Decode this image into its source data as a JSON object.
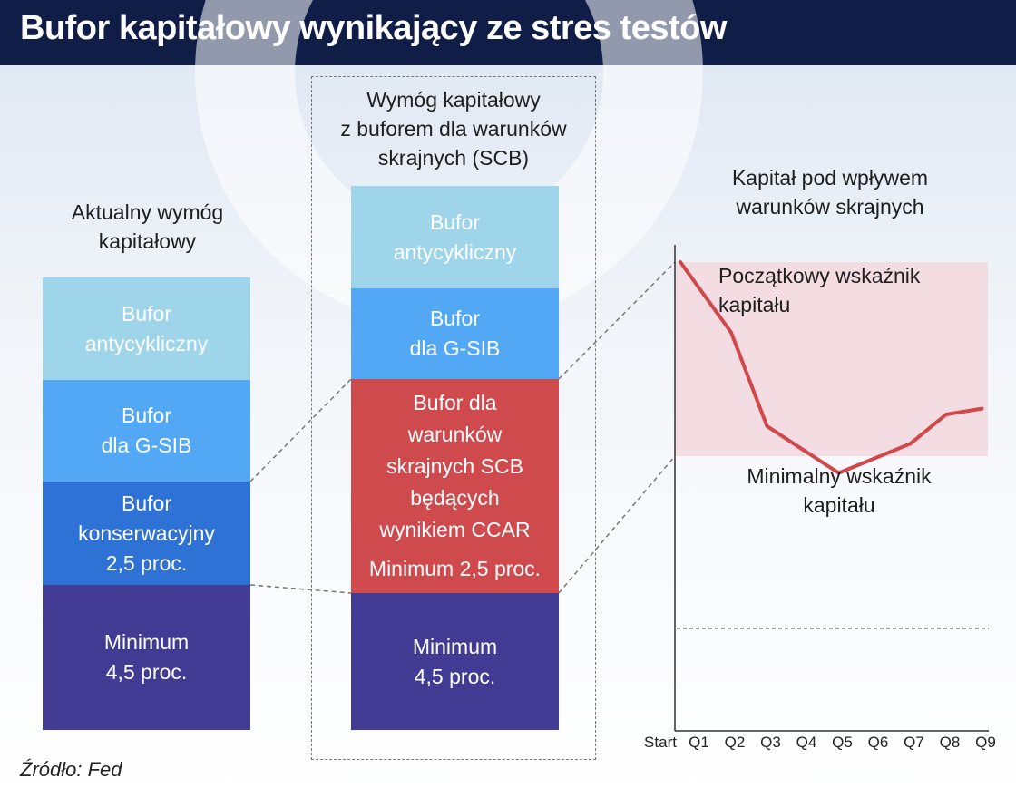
{
  "header": {
    "title": "Bufor kapitałowy wynikający ze stres testów"
  },
  "left_column": {
    "title": [
      "Aktualny wymóg",
      "kapitałowy"
    ],
    "blocks": [
      {
        "lines": [
          "Bufor",
          "antycykliczny"
        ],
        "color": "#9ed5ea"
      },
      {
        "lines": [
          "Bufor",
          "dla G-SIB"
        ],
        "color": "#52a8f4"
      },
      {
        "lines": [
          "Bufor",
          "konserwacyjny",
          "2,5 proc."
        ],
        "color": "#2e72d6"
      },
      {
        "lines": [
          "Minimum",
          "4,5 proc."
        ],
        "color": "#423b93"
      }
    ]
  },
  "middle_column": {
    "title": [
      "Wymóg kapitałowy",
      "z buforem dla warunków",
      "skrajnych (SCB)"
    ],
    "blocks": [
      {
        "lines": [
          "Bufor",
          "antycykliczny"
        ],
        "color": "#9ed5ea"
      },
      {
        "lines": [
          "Bufor",
          "dla G-SIB"
        ],
        "color": "#52a8f4"
      },
      {
        "lines": [
          "Bufor dla",
          "warunków",
          "skrajnych SCB",
          "będących",
          "wynikiem CCAR"
        ],
        "extra": "Minimum 2,5 proc.",
        "color": "#cf4a4d"
      },
      {
        "lines": [
          "Minimum",
          "4,5 proc."
        ],
        "color": "#423b93"
      }
    ]
  },
  "right_chart": {
    "title": [
      "Kapitał pod wpływem",
      "warunków skrajnych"
    ],
    "initial_label": [
      "Początkowy wskaźnik",
      "kapitału"
    ],
    "min_label": [
      "Minimalny wskaźnik",
      "kapitału"
    ],
    "line_color": "#d1484c",
    "band_color": "#f3dde2"
  },
  "chart_data": {
    "type": "line",
    "title": "Kapitał pod wpływem warunków skrajnych",
    "categories": [
      "Start",
      "Q1",
      "Q2",
      "Q3",
      "Q4",
      "Q5",
      "Q6",
      "Q7",
      "Q8",
      "Q9"
    ],
    "series": [
      {
        "values": [
          null,
          10,
          7.6,
          4.4,
          3.6,
          2.8,
          3.3,
          3.8,
          4.8,
          5.0
        ]
      }
    ],
    "reference_lines": {
      "minimum_requirement": -2.5
    },
    "ylim": [
      -6.0,
      10.0
    ],
    "grid": false
  },
  "source": "Źródło: Fed"
}
